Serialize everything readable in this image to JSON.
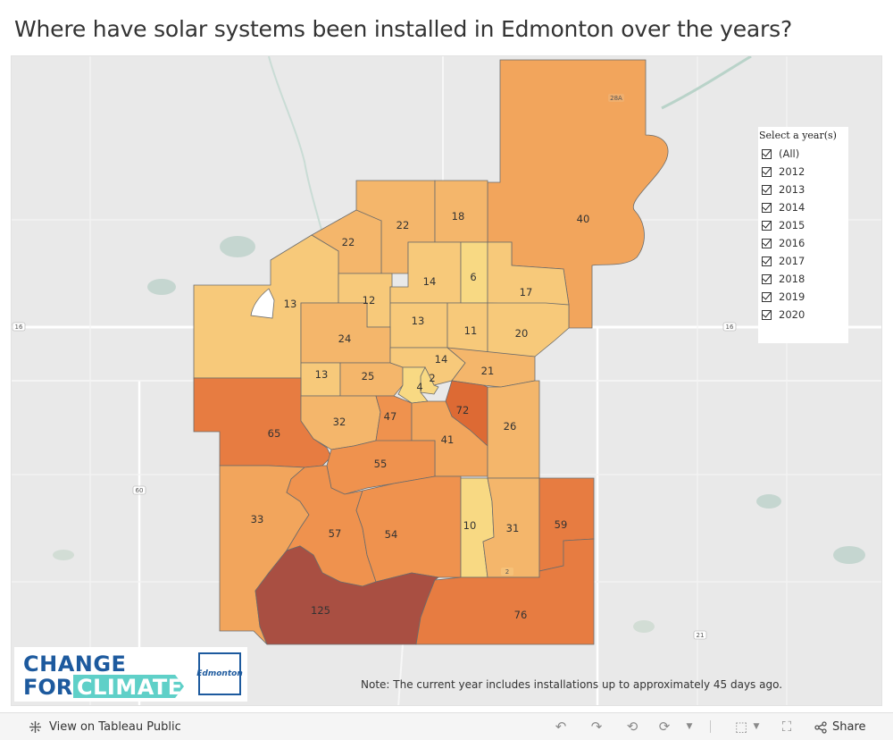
{
  "title": "Where have solar systems been installed in Edmonton over the years?",
  "legend": {
    "title": "Select a year(s)",
    "items": [
      "(All)",
      "2012",
      "2013",
      "2014",
      "2015",
      "2016",
      "2017",
      "2018",
      "2019",
      "2020"
    ]
  },
  "map": {
    "highway_labels": [
      "16",
      "16",
      "60",
      "21",
      "28A",
      "2"
    ],
    "color_scale": {
      "low": "#f8d983",
      "mid": "#f2a55c",
      "high": "#e77c41",
      "max": "#a94f42"
    },
    "wards": [
      {
        "id": "w40",
        "value": "40"
      },
      {
        "id": "w22a",
        "value": "22"
      },
      {
        "id": "w22b",
        "value": "22"
      },
      {
        "id": "w18",
        "value": "18"
      },
      {
        "id": "w13a",
        "value": "13"
      },
      {
        "id": "w12",
        "value": "12"
      },
      {
        "id": "w14a",
        "value": "14"
      },
      {
        "id": "w6",
        "value": "6"
      },
      {
        "id": "w17",
        "value": "17"
      },
      {
        "id": "w13b",
        "value": "13"
      },
      {
        "id": "w11",
        "value": "11"
      },
      {
        "id": "w20",
        "value": "20"
      },
      {
        "id": "w24",
        "value": "24"
      },
      {
        "id": "w14b",
        "value": "14"
      },
      {
        "id": "w21",
        "value": "21"
      },
      {
        "id": "w13c",
        "value": "13"
      },
      {
        "id": "w25",
        "value": "25"
      },
      {
        "id": "w2",
        "value": "2"
      },
      {
        "id": "w4",
        "value": "4"
      },
      {
        "id": "w65",
        "value": "65"
      },
      {
        "id": "w32",
        "value": "32"
      },
      {
        "id": "w47",
        "value": "47"
      },
      {
        "id": "w72",
        "value": "72"
      },
      {
        "id": "w41",
        "value": "41"
      },
      {
        "id": "w26",
        "value": "26"
      },
      {
        "id": "w55",
        "value": "55"
      },
      {
        "id": "w33",
        "value": "33"
      },
      {
        "id": "w57",
        "value": "57"
      },
      {
        "id": "w54",
        "value": "54"
      },
      {
        "id": "w10",
        "value": "10"
      },
      {
        "id": "w31",
        "value": "31"
      },
      {
        "id": "w59",
        "value": "59"
      },
      {
        "id": "w125",
        "value": "125"
      },
      {
        "id": "w76",
        "value": "76"
      }
    ]
  },
  "logo": {
    "line1": "CHANGE",
    "line2a": "FOR",
    "line2b": "CLIMATE",
    "partner": "Edmonton"
  },
  "note": "Note: The current year includes installations up to approximately 45 days ago.",
  "toolbar": {
    "view_label": "View on Tableau Public",
    "share_label": "Share",
    "icons": [
      "undo-icon",
      "redo-icon",
      "revert-icon",
      "refresh-icon",
      "download-icon",
      "fullscreen-icon",
      "share-icon"
    ]
  }
}
